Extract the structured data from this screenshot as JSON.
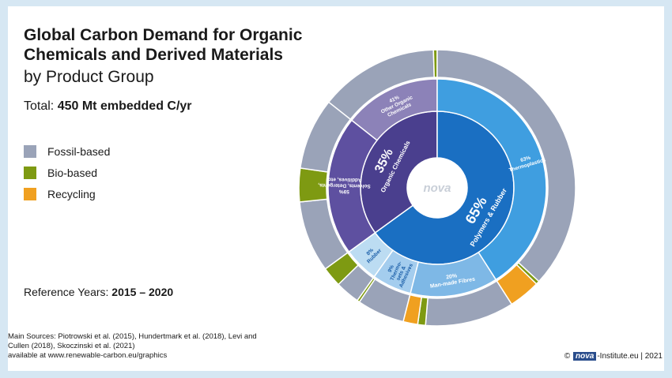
{
  "header": {
    "title": "Global Carbon Demand for Organic Chemicals and Derived Materials",
    "subtitle": "by Product Group",
    "total_label": "Total:",
    "total_value": "450 Mt embedded C/yr"
  },
  "legend": [
    {
      "label": "Fossil-based",
      "color": "#9aa3b8"
    },
    {
      "label": "Bio-based",
      "color": "#7e9a12"
    },
    {
      "label": "Recycling",
      "color": "#f0a020"
    }
  ],
  "reference": {
    "label": "Reference Years:",
    "value": "2015 – 2020"
  },
  "sources": {
    "text": "Main Sources: Piotrowski et al. (2015), Hundertmark et al. (2018), Levi and Cullen (2018), Skoczinski et al. (2021)",
    "link": "available at www.renewable-carbon.eu/graphics"
  },
  "footer": {
    "copyright": "©",
    "logo": "nova",
    "text": "-Institute.eu | 2021"
  },
  "center_logo": "nova",
  "chart_data": {
    "type": "sunburst",
    "total": 450,
    "unit": "Mt embedded C/yr",
    "inner": [
      {
        "label": "Organic Chemicals",
        "pct": 35,
        "display": "35%",
        "color": "#4a3f8e"
      },
      {
        "label": "Polymers & Rubber",
        "pct": 65,
        "display": "65%",
        "color": "#1a6fc2"
      }
    ],
    "middle": [
      {
        "label": "Other Organic Chemicals",
        "display": "41%",
        "parent": "Organic Chemicals",
        "pct": 41,
        "color": "#8c82b8"
      },
      {
        "label": "Solvents, Detergents, Additives, etc.",
        "display": "59%",
        "parent": "Organic Chemicals",
        "pct": 59,
        "color": "#5e50a0"
      },
      {
        "label": "Rubber",
        "display": "8%",
        "parent": "Polymers & Rubber",
        "pct": 8,
        "color": "#bcdcf2"
      },
      {
        "label": "Thermo-sets & Adhesives",
        "display": "9%",
        "parent": "Polymers & Rubber",
        "pct": 9,
        "color": "#a4cdee"
      },
      {
        "label": "Man-made Fibres",
        "display": "20%",
        "parent": "Polymers & Rubber",
        "pct": 20,
        "color": "#7eb8e6"
      },
      {
        "label": "Thermoplastics",
        "display": "63%",
        "parent": "Polymers & Rubber",
        "pct": 63,
        "color": "#3f9ee0"
      }
    ],
    "outer": [
      {
        "segment": "Other Organic Chemicals",
        "fossil": 97,
        "bio": 3,
        "recycling": 0
      },
      {
        "segment": "Solvents, Detergents, Additives, etc.",
        "fossil": 81,
        "bio": 19,
        "recycling": 0
      },
      {
        "segment": "Rubber",
        "fossil": 55,
        "bio": 45,
        "recycling": 0
      },
      {
        "segment": "Thermo-sets & Adhesives",
        "fossil": 95,
        "bio": 5,
        "recycling": 0
      },
      {
        "segment": "Man-made Fibres",
        "fossil": 80,
        "bio": 7,
        "recycling": 13
      },
      {
        "segment": "Thermoplastics",
        "fossil": 90,
        "bio": 1,
        "recycling": 9
      }
    ]
  }
}
